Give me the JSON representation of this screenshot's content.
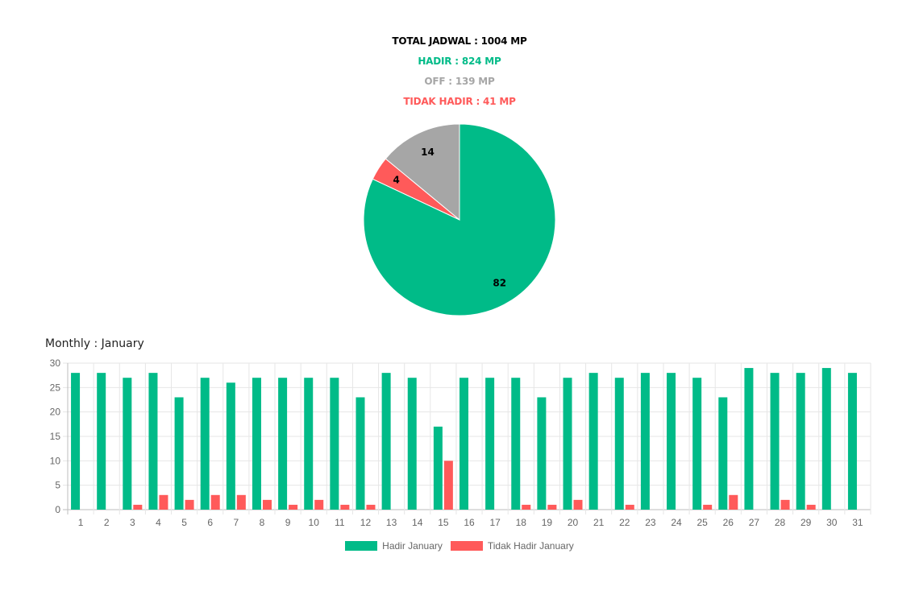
{
  "summary": {
    "total": "TOTAL JADWAL : 1004 MP",
    "hadir": "HADIR : 824 MP",
    "off": "OFF : 139 MP",
    "tidak_hadir": "TIDAK HADIR : 41 MP"
  },
  "colors": {
    "hadir": "#00bb88",
    "off": "#a6a6a6",
    "tidak_hadir": "#ff5a5a",
    "grid": "#e6e6e6",
    "axis_text": "#666666"
  },
  "bar_section": {
    "title": "Monthly : January"
  },
  "chart_data": [
    {
      "type": "pie",
      "title": "",
      "slices": [
        {
          "label": "Hadir",
          "value": 82,
          "color": "#00bb88"
        },
        {
          "label": "Tidak Hadir",
          "value": 4,
          "color": "#ff5a5a"
        },
        {
          "label": "Off",
          "value": 14,
          "color": "#a6a6a6"
        }
      ],
      "data_labels": [
        "82",
        "4",
        "14"
      ]
    },
    {
      "type": "bar",
      "title": "Monthly : January",
      "xlabel": "",
      "ylabel": "",
      "ylim": [
        0,
        30
      ],
      "yticks": [
        0,
        5,
        10,
        15,
        20,
        25,
        30
      ],
      "grid": true,
      "legend_position": "bottom",
      "categories": [
        "1",
        "2",
        "3",
        "4",
        "5",
        "6",
        "7",
        "8",
        "9",
        "10",
        "11",
        "12",
        "13",
        "14",
        "15",
        "16",
        "17",
        "18",
        "19",
        "20",
        "21",
        "22",
        "23",
        "24",
        "25",
        "26",
        "27",
        "28",
        "29",
        "30",
        "31"
      ],
      "series": [
        {
          "name": "Hadir January",
          "color": "#00bb88",
          "values": [
            28,
            28,
            27,
            28,
            23,
            27,
            26,
            27,
            27,
            27,
            27,
            23,
            28,
            27,
            17,
            27,
            27,
            27,
            23,
            27,
            28,
            27,
            28,
            28,
            27,
            23,
            29,
            28,
            28,
            29,
            28
          ]
        },
        {
          "name": "Tidak Hadir January",
          "color": "#ff5a5a",
          "values": [
            0,
            0,
            1,
            3,
            2,
            3,
            3,
            2,
            1,
            2,
            1,
            1,
            0,
            0,
            10,
            0,
            0,
            1,
            1,
            2,
            0,
            1,
            0,
            0,
            1,
            3,
            0,
            2,
            1,
            0,
            0
          ]
        }
      ]
    }
  ]
}
